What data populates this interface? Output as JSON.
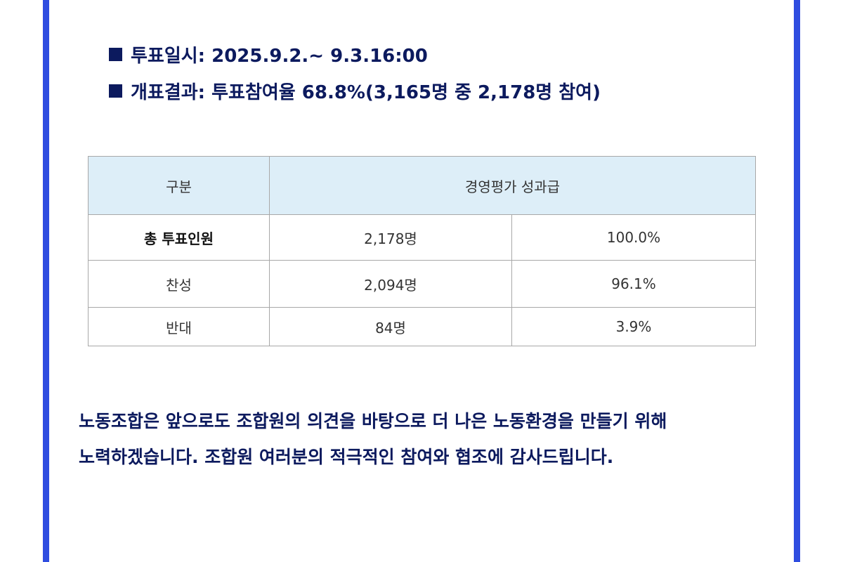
{
  "info": {
    "vote_period": "투표일시: 2025.9.2.~ 9.3.16:00",
    "vote_result": "개표결과: 투표참여율 68.8%(3,165명 중 2,178명 참여)"
  },
  "table": {
    "header": {
      "category": "구분",
      "item": "경영평가 성과급"
    },
    "rows": [
      {
        "label": "총 투표인원",
        "count": "2,178명",
        "percent": "100.0%"
      },
      {
        "label": "찬성",
        "count": "2,094명",
        "percent": "96.1%"
      },
      {
        "label": "반대",
        "count": "84명",
        "percent": "3.9%"
      }
    ]
  },
  "closing": {
    "line1": "노동조합은 앞으로도 조합원의 의견을 바탕으로 더 나은 노동환경을 만들기 위해",
    "line2": "노력하겠습니다. 조합원 여러분의 적극적인 참여와 협조에 감사드립니다."
  },
  "colors": {
    "frame": "#2f4de0",
    "text_navy": "#0c1a5e",
    "header_bg": "#ddeef8"
  }
}
